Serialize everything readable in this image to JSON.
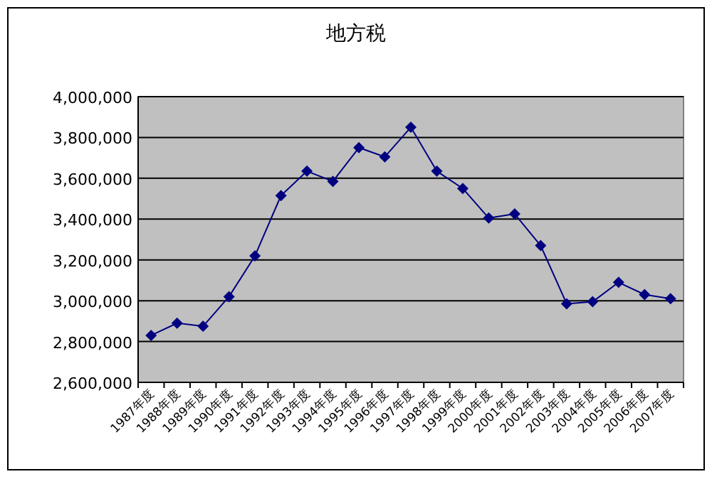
{
  "chart_data": {
    "type": "line",
    "title": "地方税",
    "categories": [
      "1987年度",
      "1988年度",
      "1989年度",
      "1990年度",
      "1991年度",
      "1992年度",
      "1993年度",
      "1994年度",
      "1995年度",
      "1996年度",
      "1997年度",
      "1998年度",
      "1999年度",
      "2000年度",
      "2001年度",
      "2002年度",
      "2003年度",
      "2004年度",
      "2005年度",
      "2006年度",
      "2007年度"
    ],
    "series": [
      {
        "color": "#000080",
        "values": [
          2830000,
          2890000,
          2875000,
          3020000,
          3220000,
          3515000,
          3635000,
          3585000,
          3750000,
          3705000,
          3850000,
          3635000,
          3550000,
          3405000,
          3425000,
          3270000,
          2985000,
          2995000,
          3090000,
          3030000,
          3010000
        ]
      }
    ],
    "ylim": [
      2600000,
      4000000
    ],
    "yticks": [
      {
        "value": 2600000,
        "label": "2,600,000"
      },
      {
        "value": 2800000,
        "label": "2,800,000"
      },
      {
        "value": 3000000,
        "label": "3,000,000"
      },
      {
        "value": 3200000,
        "label": "3,200,000"
      },
      {
        "value": 3400000,
        "label": "3,400,000"
      },
      {
        "value": 3600000,
        "label": "3,600,000"
      },
      {
        "value": 3800000,
        "label": "3,800,000"
      },
      {
        "value": 4000000,
        "label": "4,000,000"
      }
    ],
    "grid": "y",
    "marker": "diamond",
    "line_style": "solid"
  }
}
